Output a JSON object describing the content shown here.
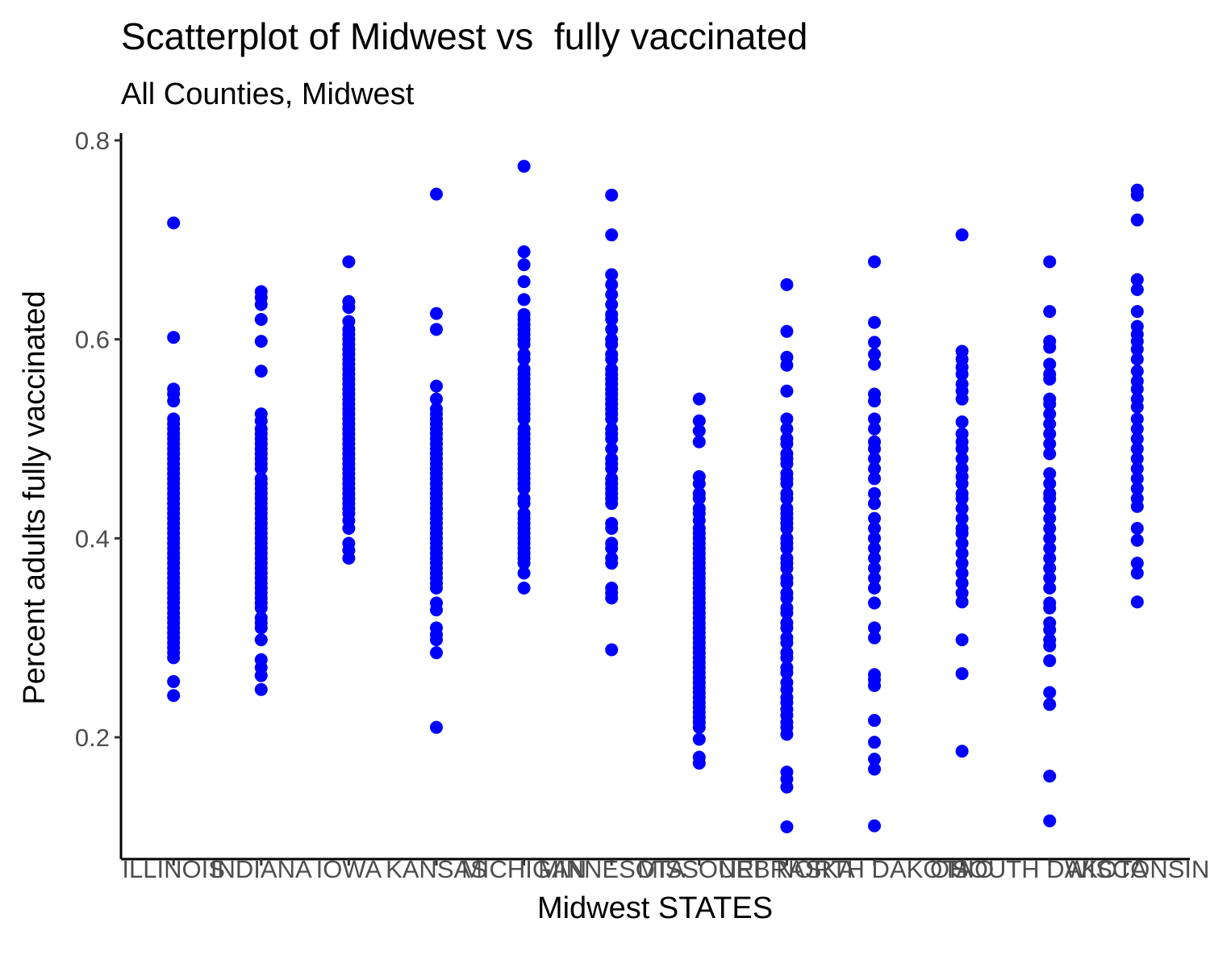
{
  "chart_data": {
    "type": "scatter",
    "title": "Scatterplot of Midwest vs  fully vaccinated",
    "subtitle": "All Counties, Midwest",
    "xlabel": "Midwest STATES",
    "ylabel": "Percent adults fully vaccinated",
    "ylim": [
      0.1,
      0.8
    ],
    "yticks": [
      0.2,
      0.4,
      0.6,
      0.8
    ],
    "ytick_labels": [
      "0.2",
      "0.4",
      "0.6",
      "0.8"
    ],
    "grid": false,
    "point_color": "#0000ff",
    "categories": [
      "ILLINOIS",
      "INDIANA",
      "IOWA",
      "KANSAS",
      "MICHIGAN",
      "MINNESOTA",
      "MISSOURI",
      "NEBRASKA",
      "NORTH DAKOTA",
      "OHIO",
      "SOUTH DAKOTA",
      "WISCONSIN"
    ],
    "series": [
      {
        "category": "ILLINOIS",
        "values": [
          0.717,
          0.602,
          0.55,
          0.545,
          0.538,
          0.52,
          0.515,
          0.51,
          0.505,
          0.5,
          0.495,
          0.49,
          0.485,
          0.48,
          0.475,
          0.47,
          0.465,
          0.46,
          0.455,
          0.45,
          0.445,
          0.44,
          0.435,
          0.43,
          0.425,
          0.42,
          0.415,
          0.41,
          0.405,
          0.4,
          0.395,
          0.39,
          0.385,
          0.38,
          0.375,
          0.37,
          0.365,
          0.36,
          0.355,
          0.35,
          0.345,
          0.34,
          0.335,
          0.33,
          0.325,
          0.32,
          0.315,
          0.31,
          0.305,
          0.3,
          0.295,
          0.29,
          0.285,
          0.28,
          0.256,
          0.242
        ]
      },
      {
        "category": "INDIANA",
        "values": [
          0.648,
          0.642,
          0.635,
          0.62,
          0.598,
          0.568,
          0.525,
          0.518,
          0.51,
          0.505,
          0.5,
          0.495,
          0.49,
          0.485,
          0.48,
          0.475,
          0.47,
          0.46,
          0.455,
          0.45,
          0.445,
          0.44,
          0.435,
          0.43,
          0.425,
          0.42,
          0.415,
          0.41,
          0.405,
          0.4,
          0.395,
          0.39,
          0.385,
          0.38,
          0.375,
          0.37,
          0.365,
          0.36,
          0.355,
          0.35,
          0.345,
          0.34,
          0.335,
          0.33,
          0.32,
          0.315,
          0.31,
          0.298,
          0.278,
          0.27,
          0.262,
          0.248
        ]
      },
      {
        "category": "IOWA",
        "values": [
          0.678,
          0.638,
          0.632,
          0.618,
          0.61,
          0.605,
          0.6,
          0.595,
          0.59,
          0.585,
          0.58,
          0.575,
          0.57,
          0.565,
          0.56,
          0.555,
          0.55,
          0.545,
          0.54,
          0.535,
          0.53,
          0.525,
          0.52,
          0.515,
          0.51,
          0.505,
          0.5,
          0.495,
          0.49,
          0.485,
          0.48,
          0.475,
          0.47,
          0.465,
          0.46,
          0.455,
          0.45,
          0.445,
          0.44,
          0.435,
          0.43,
          0.425,
          0.418,
          0.41,
          0.395,
          0.388,
          0.38
        ]
      },
      {
        "category": "KANSAS",
        "values": [
          0.746,
          0.626,
          0.61,
          0.553,
          0.54,
          0.53,
          0.525,
          0.52,
          0.515,
          0.51,
          0.505,
          0.5,
          0.495,
          0.49,
          0.485,
          0.48,
          0.475,
          0.47,
          0.465,
          0.46,
          0.455,
          0.45,
          0.445,
          0.44,
          0.435,
          0.43,
          0.425,
          0.42,
          0.415,
          0.41,
          0.405,
          0.4,
          0.395,
          0.39,
          0.385,
          0.38,
          0.375,
          0.37,
          0.365,
          0.36,
          0.355,
          0.35,
          0.335,
          0.328,
          0.31,
          0.303,
          0.298,
          0.285,
          0.21
        ]
      },
      {
        "category": "MICHIGAN",
        "values": [
          0.774,
          0.688,
          0.675,
          0.658,
          0.64,
          0.625,
          0.62,
          0.615,
          0.61,
          0.605,
          0.6,
          0.595,
          0.585,
          0.58,
          0.57,
          0.565,
          0.56,
          0.555,
          0.55,
          0.545,
          0.54,
          0.535,
          0.53,
          0.525,
          0.52,
          0.51,
          0.505,
          0.5,
          0.495,
          0.49,
          0.485,
          0.48,
          0.475,
          0.47,
          0.465,
          0.46,
          0.455,
          0.45,
          0.44,
          0.435,
          0.425,
          0.42,
          0.415,
          0.41,
          0.405,
          0.4,
          0.395,
          0.39,
          0.385,
          0.38,
          0.375,
          0.365,
          0.35
        ]
      },
      {
        "category": "MINNESOTA",
        "values": [
          0.745,
          0.705,
          0.665,
          0.655,
          0.645,
          0.635,
          0.625,
          0.62,
          0.61,
          0.6,
          0.595,
          0.585,
          0.58,
          0.57,
          0.565,
          0.56,
          0.555,
          0.55,
          0.545,
          0.54,
          0.535,
          0.53,
          0.525,
          0.52,
          0.51,
          0.505,
          0.5,
          0.49,
          0.48,
          0.475,
          0.47,
          0.46,
          0.455,
          0.45,
          0.445,
          0.44,
          0.435,
          0.415,
          0.41,
          0.395,
          0.39,
          0.38,
          0.375,
          0.35,
          0.345,
          0.34,
          0.288
        ]
      },
      {
        "category": "MISSOURI",
        "values": [
          0.54,
          0.518,
          0.508,
          0.497,
          0.462,
          0.455,
          0.445,
          0.44,
          0.43,
          0.425,
          0.418,
          0.41,
          0.405,
          0.4,
          0.395,
          0.39,
          0.385,
          0.38,
          0.375,
          0.37,
          0.365,
          0.36,
          0.355,
          0.35,
          0.345,
          0.34,
          0.335,
          0.33,
          0.325,
          0.32,
          0.315,
          0.31,
          0.305,
          0.3,
          0.295,
          0.29,
          0.285,
          0.28,
          0.275,
          0.27,
          0.265,
          0.26,
          0.255,
          0.25,
          0.245,
          0.24,
          0.235,
          0.23,
          0.225,
          0.22,
          0.215,
          0.21,
          0.198,
          0.18,
          0.174
        ]
      },
      {
        "category": "NEBRASKA",
        "values": [
          0.655,
          0.608,
          0.582,
          0.574,
          0.548,
          0.52,
          0.51,
          0.5,
          0.495,
          0.485,
          0.48,
          0.475,
          0.465,
          0.46,
          0.455,
          0.445,
          0.44,
          0.43,
          0.425,
          0.42,
          0.415,
          0.41,
          0.4,
          0.395,
          0.39,
          0.38,
          0.375,
          0.37,
          0.36,
          0.355,
          0.345,
          0.34,
          0.33,
          0.325,
          0.315,
          0.31,
          0.3,
          0.295,
          0.285,
          0.28,
          0.27,
          0.265,
          0.255,
          0.248,
          0.24,
          0.235,
          0.228,
          0.222,
          0.215,
          0.21,
          0.203,
          0.165,
          0.158,
          0.15,
          0.11
        ]
      },
      {
        "category": "NORTH DAKOTA",
        "values": [
          0.678,
          0.617,
          0.597,
          0.585,
          0.575,
          0.545,
          0.538,
          0.52,
          0.51,
          0.497,
          0.49,
          0.48,
          0.47,
          0.46,
          0.445,
          0.435,
          0.42,
          0.41,
          0.4,
          0.39,
          0.38,
          0.37,
          0.36,
          0.35,
          0.335,
          0.31,
          0.3,
          0.263,
          0.258,
          0.252,
          0.217,
          0.195,
          0.178,
          0.168,
          0.111
        ]
      },
      {
        "category": "OHIO",
        "values": [
          0.705,
          0.588,
          0.58,
          0.572,
          0.565,
          0.555,
          0.548,
          0.54,
          0.517,
          0.505,
          0.497,
          0.49,
          0.48,
          0.47,
          0.462,
          0.455,
          0.445,
          0.44,
          0.43,
          0.42,
          0.41,
          0.405,
          0.395,
          0.385,
          0.375,
          0.365,
          0.355,
          0.345,
          0.336,
          0.298,
          0.264,
          0.186
        ]
      },
      {
        "category": "SOUTH DAKOTA",
        "values": [
          0.678,
          0.628,
          0.598,
          0.592,
          0.575,
          0.565,
          0.56,
          0.54,
          0.535,
          0.525,
          0.515,
          0.505,
          0.495,
          0.485,
          0.465,
          0.455,
          0.445,
          0.44,
          0.43,
          0.42,
          0.41,
          0.4,
          0.39,
          0.38,
          0.37,
          0.36,
          0.35,
          0.335,
          0.33,
          0.315,
          0.308,
          0.298,
          0.292,
          0.277,
          0.245,
          0.233,
          0.161,
          0.116
        ]
      },
      {
        "category": "WISCONSIN",
        "values": [
          0.75,
          0.745,
          0.72,
          0.66,
          0.65,
          0.628,
          0.613,
          0.605,
          0.598,
          0.59,
          0.58,
          0.568,
          0.558,
          0.55,
          0.54,
          0.532,
          0.52,
          0.51,
          0.5,
          0.49,
          0.48,
          0.47,
          0.46,
          0.45,
          0.44,
          0.432,
          0.41,
          0.398,
          0.375,
          0.365,
          0.336
        ]
      }
    ]
  }
}
